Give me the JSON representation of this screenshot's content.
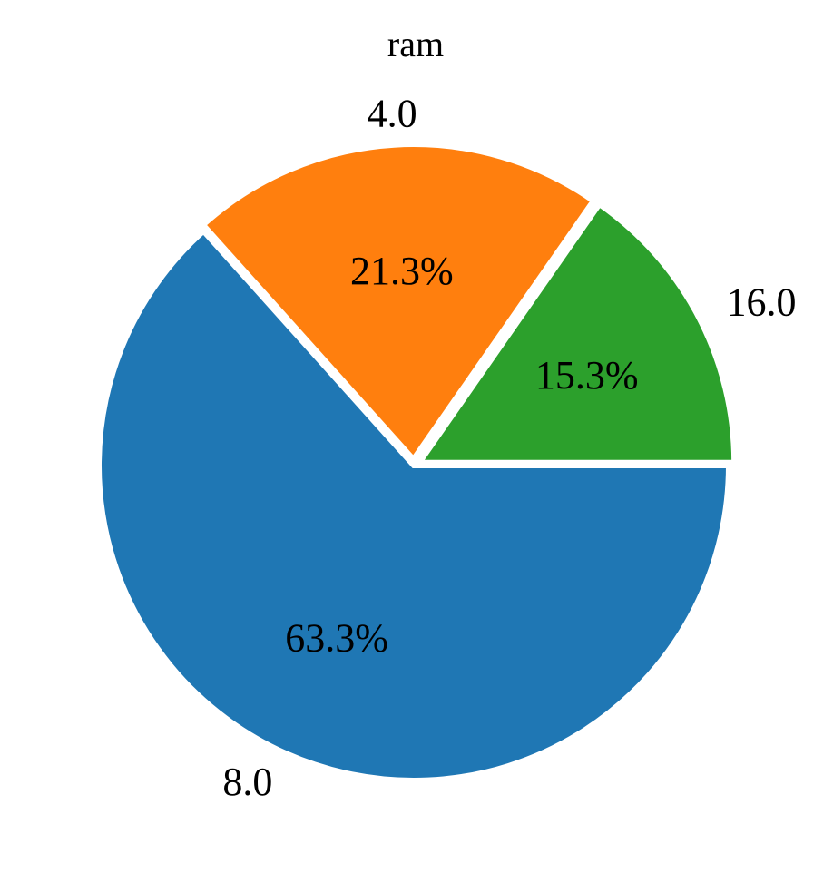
{
  "chart_data": {
    "type": "pie",
    "title": "ram",
    "slices": [
      {
        "label": "8.0",
        "value": 63.3,
        "pct_label": "63.3%",
        "color": "#1f77b4",
        "explode": 0.0
      },
      {
        "label": "4.0",
        "value": 21.3,
        "pct_label": "21.3%",
        "color": "#ff7f0e",
        "explode": 0.02
      },
      {
        "label": "16.0",
        "value": 15.3,
        "pct_label": "15.3%",
        "color": "#2ca02c",
        "explode": 0.02
      }
    ],
    "start_angle_deg": 0,
    "direction": "clockwise",
    "wedge_edge_color": "#ffffff"
  }
}
